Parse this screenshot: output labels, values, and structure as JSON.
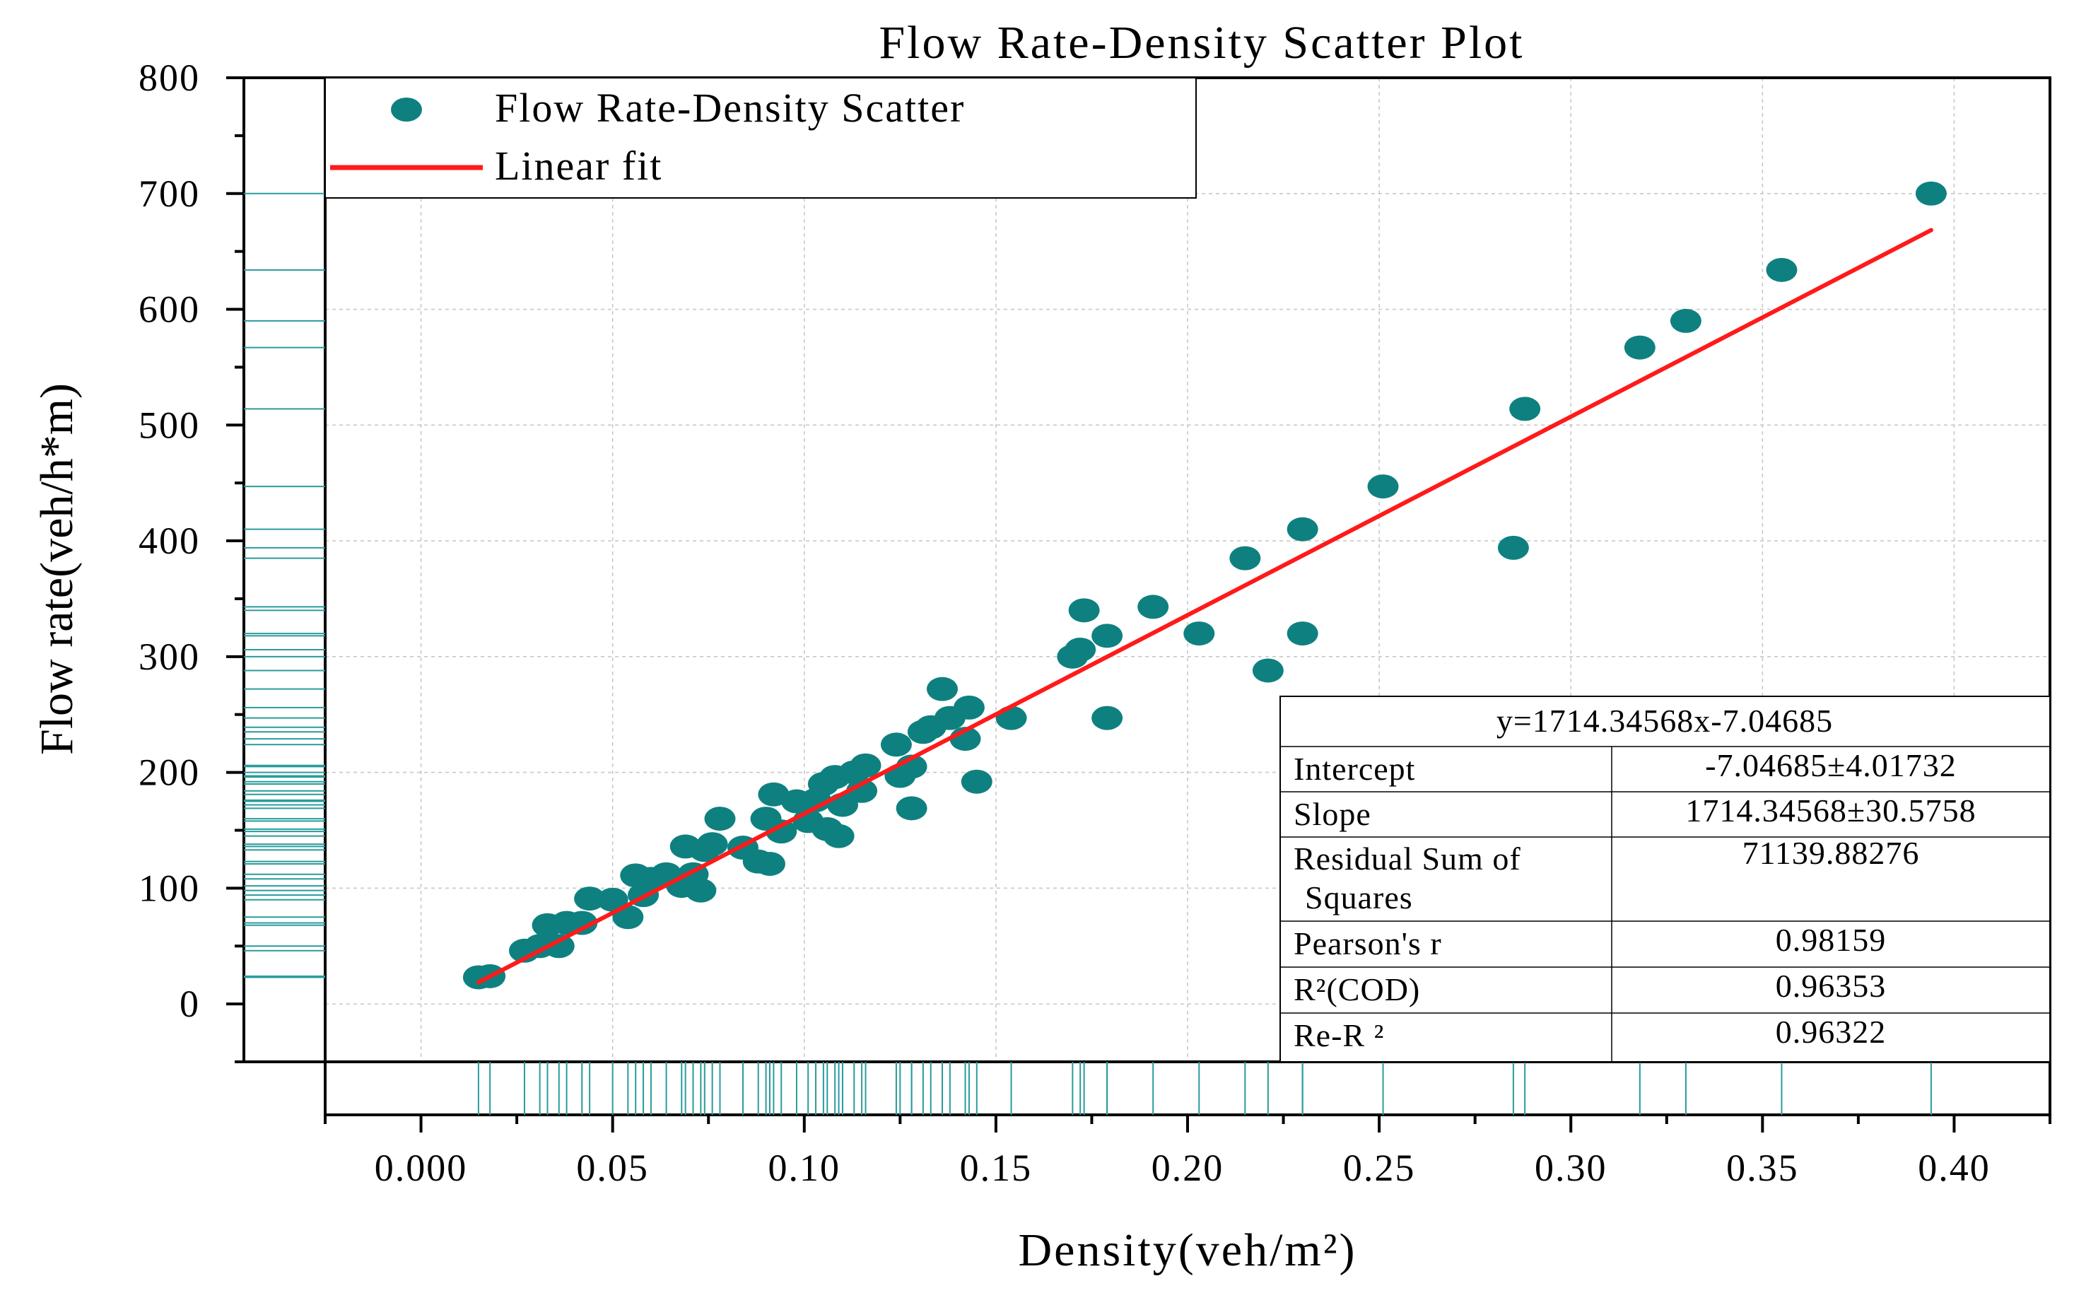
{
  "chart_data": {
    "type": "scatter",
    "title": "Flow Rate-Density Scatter Plot",
    "xlabel": "Density(veh/m²)",
    "ylabel": "Flow rate(veh/h*m)",
    "xlim": [
      -0.025,
      0.425
    ],
    "ylim": [
      -50,
      800
    ],
    "x_ticks": [
      0.0,
      0.05,
      0.1,
      0.15,
      0.2,
      0.25,
      0.3,
      0.35,
      0.4
    ],
    "x_tick_labels": [
      "0.000",
      "0.05",
      "0.10",
      "0.15",
      "0.20",
      "0.25",
      "0.30",
      "0.35",
      "0.40"
    ],
    "y_ticks": [
      0,
      100,
      200,
      300,
      400,
      500,
      600,
      700,
      800
    ],
    "y_tick_labels": [
      "0",
      "100",
      "200",
      "300",
      "400",
      "500",
      "600",
      "700",
      "800"
    ],
    "grid": true,
    "legend_position": "top-left",
    "legend": [
      "Flow Rate-Density Scatter",
      "Linear fit"
    ],
    "series": [
      {
        "name": "Flow Rate-Density Scatter",
        "color": "#0f8080",
        "points": [
          [
            0.015,
            23
          ],
          [
            0.018,
            24
          ],
          [
            0.027,
            46
          ],
          [
            0.031,
            50
          ],
          [
            0.033,
            68
          ],
          [
            0.036,
            50
          ],
          [
            0.038,
            70
          ],
          [
            0.042,
            70
          ],
          [
            0.044,
            91
          ],
          [
            0.05,
            90
          ],
          [
            0.054,
            75
          ],
          [
            0.056,
            111
          ],
          [
            0.058,
            94
          ],
          [
            0.06,
            108
          ],
          [
            0.064,
            112
          ],
          [
            0.068,
            102
          ],
          [
            0.069,
            136
          ],
          [
            0.071,
            112
          ],
          [
            0.073,
            98
          ],
          [
            0.074,
            133
          ],
          [
            0.076,
            138
          ],
          [
            0.078,
            160
          ],
          [
            0.084,
            135
          ],
          [
            0.088,
            123
          ],
          [
            0.09,
            160
          ],
          [
            0.091,
            121
          ],
          [
            0.092,
            181
          ],
          [
            0.094,
            149
          ],
          [
            0.098,
            175
          ],
          [
            0.101,
            158
          ],
          [
            0.103,
            176
          ],
          [
            0.105,
            190
          ],
          [
            0.106,
            151
          ],
          [
            0.108,
            196
          ],
          [
            0.109,
            145
          ],
          [
            0.11,
            172
          ],
          [
            0.113,
            200
          ],
          [
            0.115,
            184
          ],
          [
            0.116,
            206
          ],
          [
            0.124,
            224
          ],
          [
            0.125,
            197
          ],
          [
            0.128,
            205
          ],
          [
            0.128,
            169
          ],
          [
            0.131,
            235
          ],
          [
            0.133,
            239
          ],
          [
            0.136,
            272
          ],
          [
            0.138,
            247
          ],
          [
            0.142,
            229
          ],
          [
            0.143,
            256
          ],
          [
            0.145,
            192
          ],
          [
            0.154,
            247
          ],
          [
            0.17,
            300
          ],
          [
            0.172,
            306
          ],
          [
            0.173,
            340
          ],
          [
            0.179,
            318
          ],
          [
            0.179,
            247
          ],
          [
            0.191,
            343
          ],
          [
            0.203,
            320
          ],
          [
            0.215,
            385
          ],
          [
            0.221,
            288
          ],
          [
            0.23,
            410
          ],
          [
            0.23,
            320
          ],
          [
            0.251,
            447
          ],
          [
            0.285,
            394
          ],
          [
            0.288,
            514
          ],
          [
            0.318,
            567
          ],
          [
            0.33,
            590
          ],
          [
            0.355,
            634
          ],
          [
            0.394,
            700
          ]
        ]
      },
      {
        "name": "Linear fit",
        "color": "#ff1a1a",
        "slope": 1714.34568,
        "intercept": -7.04685,
        "x_range": [
          0.015,
          0.394
        ]
      }
    ],
    "y_rug_marks": [
      23,
      24,
      46,
      50,
      68,
      70,
      75,
      90,
      94,
      98,
      102,
      108,
      112,
      121,
      123,
      133,
      136,
      138,
      145,
      149,
      151,
      158,
      160,
      169,
      172,
      175,
      176,
      181,
      184,
      190,
      192,
      196,
      197,
      200,
      205,
      206,
      224,
      229,
      235,
      239,
      247,
      256,
      272,
      288,
      300,
      306,
      318,
      320,
      340,
      343,
      385,
      394,
      410,
      447,
      514,
      567,
      590,
      634,
      700
    ],
    "stats_table": {
      "equation": "y=1714.34568x-7.04685",
      "rows": [
        {
          "label": "Intercept",
          "value": "-7.04685±4.01732"
        },
        {
          "label": "Slope",
          "value": "1714.34568±30.5758"
        },
        {
          "label": "Residual Sum of",
          "label2": "Squares",
          "value": "71139.88276"
        },
        {
          "label": "Pearson's r",
          "value": "0.98159"
        },
        {
          "label": "R²(COD)",
          "value": "0.96353"
        },
        {
          "label": "Re-R ²",
          "value": "0.96322"
        }
      ]
    }
  }
}
